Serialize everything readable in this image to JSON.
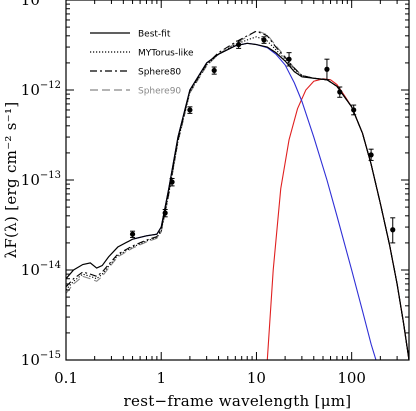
{
  "chart_data": {
    "type": "line",
    "xlabel": "rest−frame wavelength [μm]",
    "ylabel": "λF(λ) [erg cm⁻² s⁻¹]",
    "x_scale": "log",
    "y_scale": "log",
    "xlim": [
      0.1,
      400
    ],
    "ylim": [
      1e-15,
      1e-11
    ],
    "x_ticks": [
      {
        "value": 0.1,
        "label": "0.1"
      },
      {
        "value": 1,
        "label": "1"
      },
      {
        "value": 10,
        "label": "10"
      },
      {
        "value": 100,
        "label": "100"
      }
    ],
    "y_ticks": [
      {
        "value": 1e-15,
        "mantissa": "10",
        "exp": "−15"
      },
      {
        "value": 1e-14,
        "mantissa": "10",
        "exp": "−14"
      },
      {
        "value": 1e-13,
        "mantissa": "10",
        "exp": "−13"
      },
      {
        "value": 1e-12,
        "mantissa": "10",
        "exp": "−12"
      },
      {
        "value": 1e-11,
        "mantissa": "10",
        "exp": "−11"
      }
    ],
    "legend": {
      "placement": "top-left",
      "entries": [
        {
          "label": "Best-fit",
          "style": "solid",
          "color": "#000000"
        },
        {
          "label": "MYTorus-like",
          "style": "dotted",
          "color": "#000000"
        },
        {
          "label": "Sphere80",
          "style": "dash-dot",
          "color": "#000000"
        },
        {
          "label": "Sphere90",
          "style": "long-dash",
          "color": "#888888"
        }
      ]
    },
    "series": [
      {
        "name": "Best-fit",
        "color": "#000000",
        "style": "solid",
        "x": [
          0.1,
          0.12,
          0.15,
          0.18,
          0.21,
          0.24,
          0.28,
          0.35,
          0.5,
          0.7,
          0.9,
          1.0,
          1.2,
          1.5,
          2,
          3,
          4,
          6,
          8,
          10,
          13,
          16,
          20,
          25,
          30,
          40,
          55,
          70,
          100,
          130,
          160,
          200,
          250,
          300,
          350,
          400
        ],
        "y": [
          8e-15,
          1e-14,
          1.15e-14,
          1.2e-14,
          1.05e-14,
          1.12e-14,
          1.4e-14,
          1.8e-14,
          2.2e-14,
          2.4e-14,
          2.5e-14,
          3e-14,
          8e-14,
          3e-13,
          1e-12,
          2e-12,
          2.5e-12,
          3.1e-12,
          3.3e-12,
          3.2e-12,
          3e-12,
          2.6e-12,
          2.1e-12,
          1.6e-12,
          1.4e-12,
          1.35e-12,
          1.3e-12,
          1.1e-12,
          6.5e-13,
          3.3e-13,
          1.5e-13,
          5.5e-14,
          1.9e-14,
          7e-15,
          2.6e-15,
          1e-15
        ]
      },
      {
        "name": "MYTorus-like",
        "color": "#000000",
        "style": "dotted",
        "x": [
          0.1,
          0.12,
          0.15,
          0.18,
          0.21,
          0.24,
          0.28,
          0.35,
          0.5,
          0.7,
          0.9,
          1.0,
          1.2,
          1.5,
          2,
          3,
          4,
          6,
          8,
          10,
          13,
          16,
          20,
          25,
          30,
          40,
          55,
          70,
          100,
          130,
          160,
          200,
          250,
          300,
          350,
          400
        ],
        "y": [
          6e-15,
          7.5e-15,
          9e-15,
          8.5e-15,
          8e-15,
          9e-15,
          1.1e-14,
          1.45e-14,
          1.8e-14,
          2.1e-14,
          2.3e-14,
          2.7e-14,
          7e-14,
          2.7e-13,
          9.5e-13,
          1.9e-12,
          2.5e-12,
          3.2e-12,
          3.6e-12,
          3.9e-12,
          3.5e-12,
          2.8e-12,
          2.2e-12,
          1.7e-12,
          1.45e-12,
          1.35e-12,
          1.3e-12,
          1.1e-12,
          6.5e-13,
          3.3e-13,
          1.5e-13,
          5.5e-14,
          1.9e-14,
          7e-15,
          2.6e-15,
          1e-15
        ]
      },
      {
        "name": "Sphere80",
        "color": "#000000",
        "style": "dash-dot",
        "x": [
          0.1,
          0.12,
          0.15,
          0.18,
          0.21,
          0.24,
          0.28,
          0.35,
          0.5,
          0.7,
          0.9,
          1.0,
          1.2,
          1.5,
          2,
          3,
          4,
          6,
          8,
          10,
          13,
          16,
          20,
          25,
          30,
          40,
          55,
          70,
          100,
          130,
          160,
          200,
          250,
          300,
          350,
          400
        ],
        "y": [
          6.5e-15,
          8e-15,
          9.5e-15,
          9e-15,
          8.5e-15,
          9.5e-15,
          1.15e-14,
          1.5e-14,
          1.85e-14,
          2.15e-14,
          2.35e-14,
          2.8e-14,
          7.2e-14,
          2.8e-13,
          9.8e-13,
          1.95e-12,
          2.6e-12,
          3.4e-12,
          4e-12,
          4.5e-12,
          4e-12,
          3e-12,
          2.3e-12,
          1.75e-12,
          1.45e-12,
          1.35e-12,
          1.3e-12,
          1.1e-12,
          6.5e-13,
          3.3e-13,
          1.5e-13,
          5.5e-14,
          1.9e-14,
          7e-15,
          2.6e-15,
          1e-15
        ]
      },
      {
        "name": "Sphere90",
        "color": "#888888",
        "style": "long-dash",
        "x": [
          0.1,
          0.12,
          0.15,
          0.18,
          0.21,
          0.24,
          0.28,
          0.35,
          0.5,
          0.7,
          0.9,
          1.0,
          1.2,
          1.5,
          2,
          3,
          4,
          6,
          8,
          10,
          13,
          16,
          20,
          25,
          30,
          40,
          55,
          70,
          100,
          130,
          160,
          200,
          250,
          300,
          350,
          400
        ],
        "y": [
          5.5e-15,
          7e-15,
          8.5e-15,
          8e-15,
          7.5e-15,
          8.5e-15,
          1.05e-14,
          1.4e-14,
          1.75e-14,
          2.05e-14,
          2.25e-14,
          2.65e-14,
          6.8e-14,
          2.65e-13,
          9.3e-13,
          1.85e-12,
          2.5e-12,
          3.3e-12,
          3.9e-12,
          4.6e-12,
          4.1e-12,
          3.1e-12,
          2.35e-12,
          1.75e-12,
          1.45e-12,
          1.35e-12,
          1.3e-12,
          1.1e-12,
          6.5e-13,
          3.3e-13,
          1.5e-13,
          5.5e-14,
          1.9e-14,
          7e-15,
          2.6e-15,
          1e-15
        ]
      },
      {
        "name": "",
        "color": "#2f2fd6",
        "style": "solid",
        "x": [
          0.5,
          0.7,
          0.9,
          1.0,
          1.2,
          1.5,
          2,
          3,
          4,
          6,
          8,
          10,
          13,
          16,
          20,
          25,
          30,
          40,
          55,
          70,
          100,
          130,
          160,
          180
        ],
        "y": [
          2.2e-14,
          2.4e-14,
          2.5e-14,
          3e-14,
          8e-14,
          3e-13,
          1e-12,
          2e-12,
          2.5e-12,
          3.1e-12,
          3.3e-12,
          3.2e-12,
          2.95e-12,
          2.5e-12,
          1.9e-12,
          1.2e-12,
          7.5e-13,
          3e-13,
          1e-13,
          4e-14,
          1e-14,
          3.5e-15,
          1.5e-15,
          1e-15
        ]
      },
      {
        "name": "",
        "color": "#e02020",
        "style": "solid",
        "x": [
          13,
          15,
          18,
          22,
          27,
          33,
          40,
          50,
          60,
          70,
          85,
          100,
          130,
          160,
          200,
          250,
          300,
          350,
          400
        ],
        "y": [
          1e-15,
          1e-14,
          8e-14,
          2.8e-13,
          6.2e-13,
          1e-12,
          1.25e-12,
          1.33e-12,
          1.3e-12,
          1.15e-12,
          8.5e-13,
          6.5e-13,
          3.3e-13,
          1.5e-13,
          5.5e-14,
          1.9e-14,
          7e-15,
          2.6e-15,
          1e-15
        ]
      }
    ],
    "points": {
      "x": [
        0.5,
        1.1,
        1.3,
        2.0,
        3.6,
        6.5,
        12,
        22,
        55,
        75,
        105,
        160,
        270
      ],
      "y": [
        2.5e-14,
        4.3e-14,
        9.5e-14,
        6e-13,
        1.65e-12,
        3.2e-12,
        3.6e-12,
        2.2e-12,
        1.7e-12,
        9.5e-13,
        6e-13,
        1.9e-13,
        2.8e-14
      ],
      "err_lo": [
        2.3e-14,
        3.9e-14,
        8.6e-14,
        5.5e-13,
        1.5e-12,
        2.9e-12,
        3.3e-12,
        1.85e-12,
        1.3e-12,
        8.3e-13,
        5.3e-13,
        1.65e-13,
        2e-14
      ],
      "err_hi": [
        2.7e-14,
        4.7e-14,
        1.04e-13,
        6.5e-13,
        1.8e-12,
        3.5e-12,
        3.9e-12,
        2.6e-12,
        2.2e-12,
        1.08e-12,
        6.8e-13,
        2.2e-13,
        3.8e-14
      ]
    },
    "grid": false
  }
}
